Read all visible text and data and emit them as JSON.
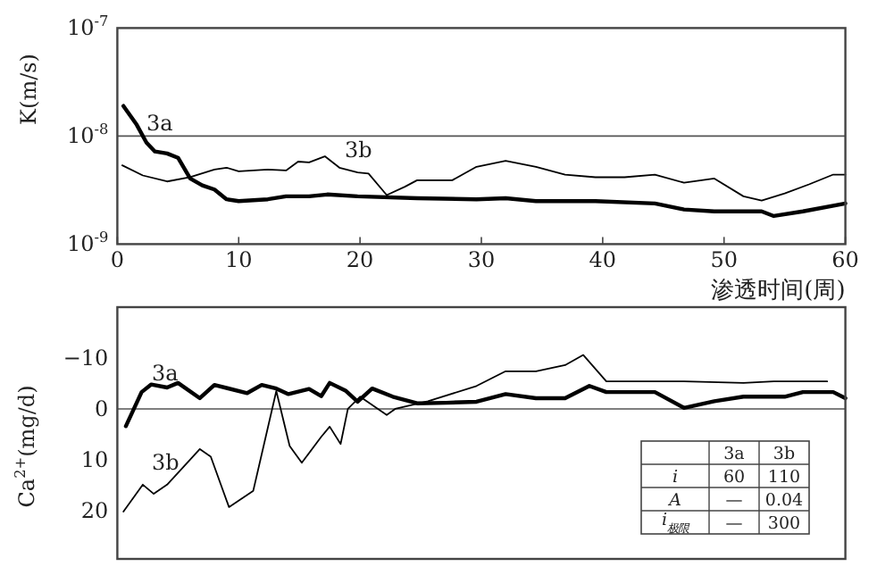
{
  "chart_data": [
    {
      "type": "line",
      "ylabel": "K(m/s)",
      "xlabel": "渗透时间(周)",
      "log": "y",
      "grid": false,
      "xlim": [
        0,
        60
      ],
      "ylim": [
        1e-09,
        1e-07
      ],
      "xticks": [
        0,
        10,
        20,
        30,
        40,
        50,
        60
      ],
      "yticks": [
        {
          "value": 1e-09,
          "label": "10$^{-9}$"
        },
        {
          "value": 1e-08,
          "label": "10$^{-8}$"
        },
        {
          "value": 1e-07,
          "label": "10$^{-7}$"
        }
      ],
      "ref_lines": [
        {
          "axis": "y",
          "value": 1e-08
        }
      ],
      "series": [
        {
          "name": "3a",
          "color": "#000000",
          "x": [
            0.5,
            1.6,
            2.4,
            3.1,
            4.1,
            5,
            6,
            7,
            8,
            9,
            10,
            12.4,
            13.9,
            15.8,
            17.3,
            19.8,
            24.7,
            29.6,
            32,
            34.5,
            39.4,
            44.3,
            46.7,
            49.2,
            53.1,
            54.1,
            56.5,
            60
          ],
          "values": [
            1.9e-08,
            1.27e-08,
            8.7e-09,
            7.2e-09,
            6.9e-09,
            6.3e-09,
            4.05e-09,
            3.5e-09,
            3.2e-09,
            2.6e-09,
            2.5e-09,
            2.6e-09,
            2.77e-09,
            2.77e-09,
            2.88e-09,
            2.77e-09,
            2.66e-09,
            2.6e-09,
            2.66e-09,
            2.5e-09,
            2.5e-09,
            2.38e-09,
            2.09e-09,
            2.01e-09,
            2.01e-09,
            1.82e-09,
            2.01e-09,
            2.38e-09
          ]
        },
        {
          "name": "3b",
          "color": "#000000",
          "x": [
            0.4,
            2.1,
            4.1,
            6,
            8,
            9,
            10,
            12.4,
            13.9,
            14.9,
            15.8,
            17.1,
            18.3,
            19.8,
            20.7,
            22.2,
            23.7,
            24.7,
            27.6,
            29.6,
            32,
            34.5,
            36.9,
            39.4,
            41.8,
            44.3,
            46.7,
            49.2,
            51.6,
            53.1,
            55,
            57,
            59,
            60
          ],
          "values": [
            5.36e-09,
            4.32e-09,
            3.8e-09,
            4.16e-09,
            4.9e-09,
            5.1e-09,
            4.72e-09,
            4.9e-09,
            4.8e-09,
            5.8e-09,
            5.7e-09,
            6.5e-09,
            5.1e-09,
            4.6e-09,
            4.5e-09,
            2.84e-09,
            3.4e-09,
            3.9e-09,
            3.9e-09,
            5.2e-09,
            5.9e-09,
            5.2e-09,
            4.4e-09,
            4.16e-09,
            4.16e-09,
            4.4e-09,
            3.7e-09,
            4.05e-09,
            2.77e-09,
            2.53e-09,
            2.95e-09,
            3.57e-09,
            4.4e-09,
            4.4e-09
          ]
        }
      ]
    },
    {
      "type": "line",
      "ylabel": "Ca$^{2+}$(mg/d)",
      "grid": false,
      "tick_labels": "y",
      "xlim": [
        0,
        60
      ],
      "ylim": [
        29.5,
        -20
      ],
      "yticks": [
        {
          "value": -10,
          "label": "−10"
        },
        0,
        10,
        20
      ],
      "ref_lines": [
        {
          "axis": "y",
          "value": 0
        }
      ],
      "annotations": [
        "3a",
        "3b",
        "i",
        "60",
        "110",
        "A",
        "—",
        "0.04",
        "i$_{极限}$",
        "—",
        "300"
      ],
      "series": [
        {
          "name": "3a",
          "color": "#000000",
          "x": [
            0.7,
            2,
            2.8,
            4.1,
            5,
            6.8,
            8,
            10.7,
            11.9,
            13.1,
            14.1,
            15.8,
            16.8,
            17.5,
            18.8,
            19.8,
            21,
            22.7,
            24.7,
            27.1,
            29.6,
            32,
            34.5,
            36.9,
            38.9,
            40.3,
            44.3,
            46.7,
            49.2,
            51.6,
            55,
            56.5,
            59,
            60
          ],
          "values": [
            3.4,
            -3.3,
            -4.8,
            -4.2,
            -5.1,
            -2.1,
            -4.7,
            -3.1,
            -4.7,
            -4,
            -2.9,
            -3.9,
            -2.5,
            -5.1,
            -3.6,
            -1.4,
            -4,
            -2.4,
            -1.1,
            -1.2,
            -1.4,
            -2.9,
            -2.1,
            -2.1,
            -4.5,
            -3.3,
            -3.3,
            -0.2,
            -1.5,
            -2.4,
            -2.4,
            -3.3,
            -3.3,
            -2.1
          ]
        },
        {
          "name": "3b",
          "color": "#000000",
          "x": [
            0.5,
            2.1,
            3,
            4.1,
            6.8,
            7.7,
            9.2,
            11.2,
            13.1,
            14.2,
            15.2,
            16.8,
            17.5,
            18.4,
            19,
            20,
            22.2,
            22.9,
            25.6,
            29.6,
            32,
            34.5,
            36.9,
            38.4,
            40.3,
            46.7,
            51.6,
            54.1,
            58.5
          ],
          "values": [
            20.2,
            14.9,
            16.7,
            14.9,
            7.9,
            9.4,
            19.3,
            16.1,
            -3.5,
            7.3,
            10.6,
            5.5,
            3.5,
            6.9,
            0,
            -2.4,
            1.2,
            0,
            -1.5,
            -4.5,
            -7.4,
            -7.4,
            -8.6,
            -10.6,
            -5.4,
            -5.4,
            -5.1,
            -5.4,
            -5.4
          ]
        }
      ]
    }
  ]
}
